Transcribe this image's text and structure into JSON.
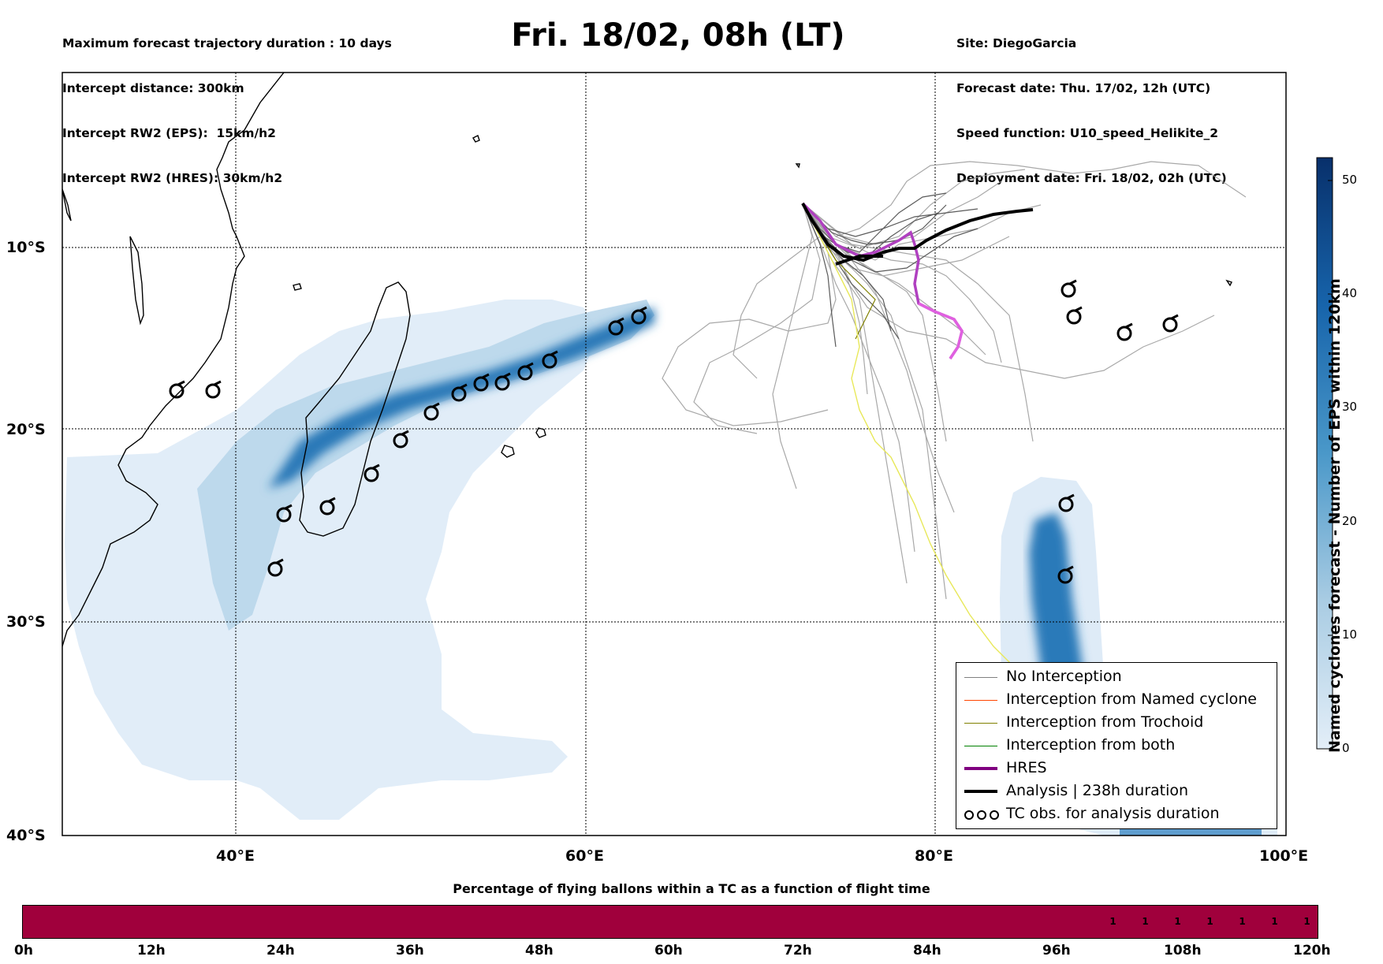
{
  "header_left": {
    "line1": "Maximum forecast trajectory duration : 10 days",
    "line2": "Intercept distance: 300km",
    "line3": "Intercept RW2 (EPS):  15km/h2",
    "line4": "Intercept RW2 (HRES): 30km/h2"
  },
  "title": "Fri. 18/02, 08h (LT)",
  "header_right": {
    "line1": "Site: DiegoGarcia",
    "line2": "Forecast date: Thu. 17/02, 12h (UTC)",
    "line3": "Speed function: U10_speed_Helikite_2",
    "line4": "Deployment date: Fri. 18/02, 02h (UTC)"
  },
  "map": {
    "lat_labels": [
      "10°S",
      "20°S",
      "30°S",
      "40°S"
    ],
    "lon_labels": [
      "40°E",
      "60°E",
      "80°E",
      "100°E"
    ],
    "lon_range": [
      30,
      100
    ],
    "lat_range": [
      0,
      -40
    ]
  },
  "legend": {
    "items": [
      {
        "label": "No Interception",
        "color": "#808080",
        "width": 1.5
      },
      {
        "label": "Interception from Named cyclone",
        "color": "#ff4500",
        "width": 1.5
      },
      {
        "label": "Interception from Trochoid",
        "color": "#808000",
        "width": 1.5
      },
      {
        "label": "Interception from both",
        "color": "#008000",
        "width": 1.5
      },
      {
        "label": "HRES",
        "color": "#800080",
        "width": 4
      },
      {
        "label": "Analysis | 238h duration",
        "color": "#000000",
        "width": 4
      },
      {
        "label": "TC obs. for analysis duration",
        "color": "#000000",
        "width": 0
      }
    ]
  },
  "colorbar": {
    "label": "Named cyclones forecast - Number of EPS within 120km",
    "ticks": [
      "0",
      "10",
      "20",
      "30",
      "40",
      "50"
    ],
    "min": 0,
    "max": 52
  },
  "timebar": {
    "title": "Percentage of flying ballons within a TC as a function of flight time",
    "tick_labels": [
      "0h",
      "12h",
      "24h",
      "36h",
      "48h",
      "60h",
      "72h",
      "84h",
      "96h",
      "108h",
      "120h"
    ],
    "cell_values": [
      "1",
      "1",
      "1",
      "1",
      "1",
      "1",
      "1"
    ],
    "color": "#a0003c"
  },
  "tc_obs_symbol": "cyclone-icon"
}
